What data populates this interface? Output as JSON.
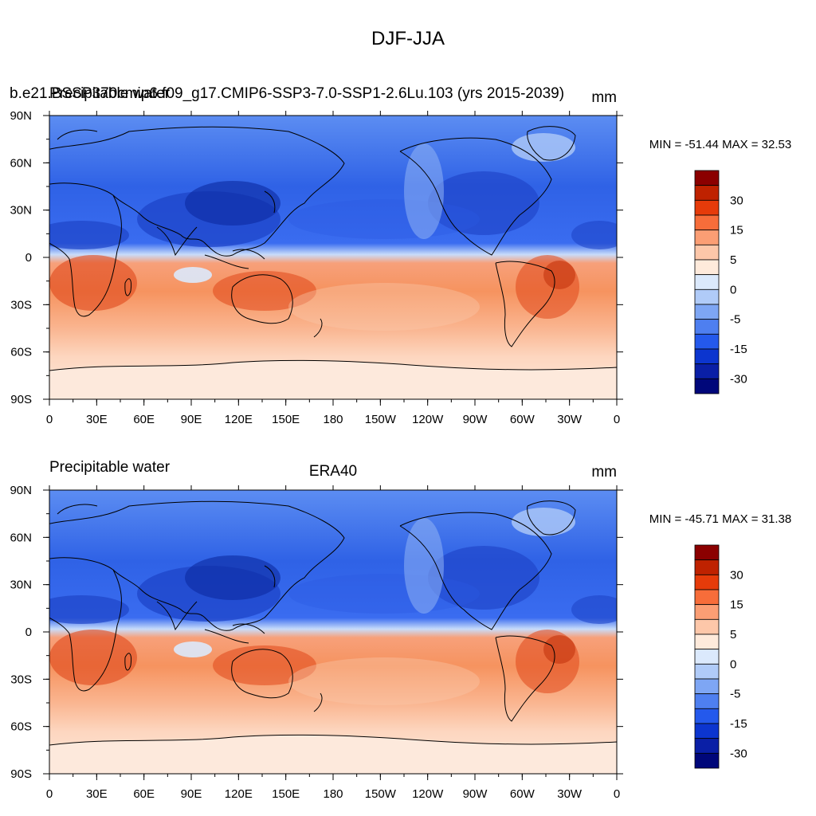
{
  "title": "DJF-JJA",
  "colors": {
    "ocean_south": "#fbd0b8",
    "ocean_equator": "#f4a07a",
    "ocean_north": "#4a7ff0",
    "land_line": "#000000",
    "antarctica": "#fde7d8"
  },
  "x_tick_labels": [
    "0",
    "30E",
    "60E",
    "90E",
    "120E",
    "150E",
    "180",
    "150W",
    "120W",
    "90W",
    "60W",
    "30W",
    "0"
  ],
  "y_tick_labels": [
    "90N",
    "60N",
    "30N",
    "0",
    "30S",
    "60S",
    "90S"
  ],
  "colorbar": {
    "labels": [
      "30",
      "15",
      "5",
      "0",
      "-5",
      "-15",
      "-30"
    ],
    "colors": [
      "#8b0000",
      "#bf2200",
      "#e63b0a",
      "#f76d3a",
      "#fb9e74",
      "#fdc7a9",
      "#feeadb",
      "#dbe9fc",
      "#b0cbf8",
      "#7ea6f4",
      "#4e7ff0",
      "#2459ec",
      "#0c35cf",
      "#0a1fa6",
      "#00077a"
    ]
  },
  "panels": [
    {
      "left_title": "b.e21.BSSP370cmip6.f09_g17.CMIP6-SSP3-7.0-SSP1-2.6Lu.103 (yrs 2015-2039)",
      "overlay_left": "Precipitable water",
      "center_title": "",
      "units": "mm",
      "min_max": "MIN = -51.44 MAX =  32.53"
    },
    {
      "left_title": "Precipitable water",
      "overlay_left": "",
      "center_title": "ERA40",
      "units": "mm",
      "min_max": "MIN = -45.71 MAX =  31.38"
    }
  ]
}
